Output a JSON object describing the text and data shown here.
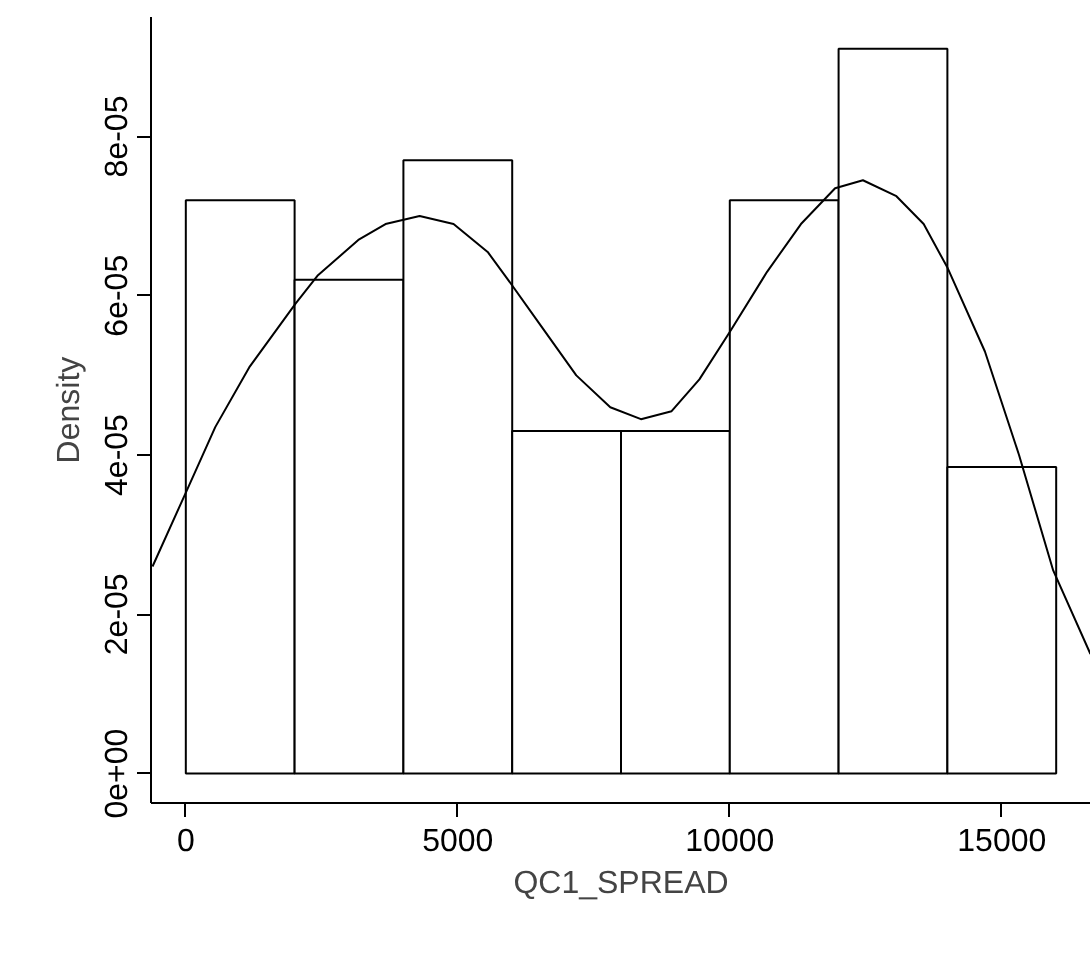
{
  "chart_data": {
    "type": "histogram",
    "xlabel": "QC1_SPREAD",
    "ylabel": "Density",
    "xlim": [
      -640,
      16640
    ],
    "ylim": [
      -3.7e-06,
      9.5e-05
    ],
    "xticks": [
      0,
      5000,
      10000,
      15000
    ],
    "yticks": [
      {
        "value": 0,
        "label": "0e+00"
      },
      {
        "value": 2e-05,
        "label": "2e-05"
      },
      {
        "value": 4e-05,
        "label": "4e-05"
      },
      {
        "value": 6e-05,
        "label": "6e-05"
      },
      {
        "value": 8e-05,
        "label": "8e-05"
      }
    ],
    "grid": false,
    "series": [
      {
        "color": "#ffffff",
        "bins": [
          0,
          2000,
          4000,
          6000,
          8000,
          10000,
          12000,
          14000,
          16000
        ],
        "values": [
          7.2e-05,
          6.2e-05,
          7.7e-05,
          4.3e-05,
          4.3e-05,
          7.2e-05,
          9.1e-05,
          3.85e-05
        ]
      },
      {
        "type": "line",
        "color": "#000000",
        "x": [
          -612,
          15,
          541,
          1165,
          2017,
          2419,
          3171,
          3671,
          4298,
          4922,
          5549,
          5925,
          6552,
          7178,
          7803,
          8367,
          8930,
          9441,
          10005,
          10685,
          11308,
          11936,
          12447,
          13063,
          13564,
          14003,
          14690,
          15317,
          15945,
          16630
        ],
        "values": [
          2.6e-05,
          3.55e-05,
          4.35e-05,
          5.1e-05,
          5.9e-05,
          6.25e-05,
          6.7e-05,
          6.9e-05,
          7e-05,
          6.9e-05,
          6.55e-05,
          6.2e-05,
          5.6e-05,
          5e-05,
          4.6e-05,
          4.45e-05,
          4.55e-05,
          4.95e-05,
          5.55e-05,
          6.3e-05,
          6.9e-05,
          7.35e-05,
          7.45e-05,
          7.25e-05,
          6.9e-05,
          6.35e-05,
          5.3e-05,
          4e-05,
          2.55e-05,
          1.5e-05
        ]
      }
    ]
  }
}
